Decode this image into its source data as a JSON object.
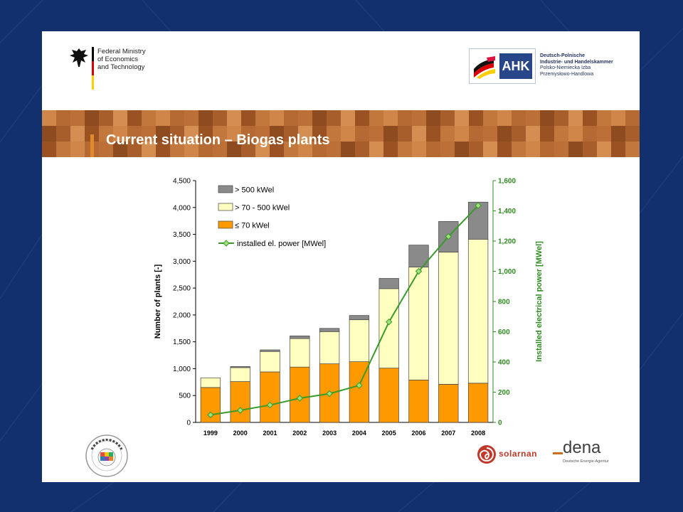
{
  "ministry": {
    "lines": [
      "Federal Ministry",
      "of Economics",
      "and Technology"
    ]
  },
  "ahk": {
    "mark": "AHK",
    "lines": [
      "Deutsch-Polnische",
      "Industrie- und Handelskammer",
      "Polsko-Niemiecka Izba",
      "Przemysłowo-Handlowa"
    ]
  },
  "slide_title": "Current situation – Biogas plants",
  "footer": {
    "solarnan": "solarnan",
    "dena_word": "dena",
    "dena_sub": "Deutsche Energie-Agentur"
  },
  "colors": {
    "over500": "#8a8a8a",
    "mid": "#ffffc0",
    "small": "#ff9900",
    "line": "#3a9a2a",
    "right_axis": "#2e8b1f",
    "background": "#12306e",
    "banner": "#b86a32"
  },
  "chart_data": {
    "type": "bar",
    "stacked": true,
    "categories": [
      "1999",
      "2000",
      "2001",
      "2002",
      "2003",
      "2004",
      "2005",
      "2006",
      "2007",
      "2008"
    ],
    "series": [
      {
        "name": "≤ 70 kWel",
        "values": [
          650,
          760,
          940,
          1030,
          1090,
          1130,
          1010,
          790,
          710,
          730
        ]
      },
      {
        "name": "> 70 - 500 kWel",
        "values": [
          180,
          260,
          380,
          530,
          600,
          780,
          1480,
          2100,
          2460,
          2680
        ]
      },
      {
        "name": "> 500 kWel",
        "values": [
          0,
          20,
          30,
          50,
          60,
          80,
          190,
          410,
          570,
          690
        ]
      }
    ],
    "line_series": {
      "name": "installed el. power [MWel]",
      "values": [
        50,
        80,
        115,
        160,
        190,
        245,
        665,
        1000,
        1230,
        1435
      ]
    },
    "ylabel_left": "Number of plants [-]",
    "ylabel_right": "Installed electrical power  [MWel]",
    "ylim_left": [
      0,
      4500
    ],
    "ylim_right": [
      0,
      1600
    ],
    "yticks_left": [
      "0",
      "500",
      "1,000",
      "1,500",
      "2,000",
      "2,500",
      "3,000",
      "3,500",
      "4,000",
      "4,500"
    ],
    "yticks_right": [
      "0",
      "200",
      "400",
      "600",
      "800",
      "1,000",
      "1,200",
      "1,400",
      "1,600"
    ],
    "legend_position": "top-left",
    "grid": false
  }
}
